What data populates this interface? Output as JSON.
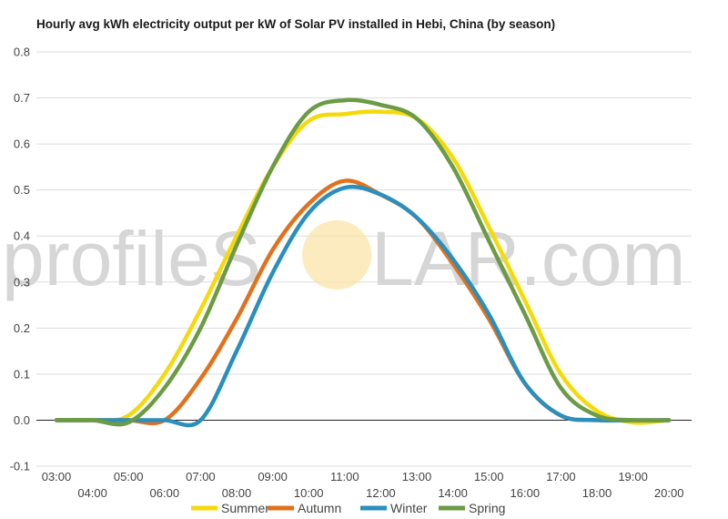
{
  "watermark": {
    "left": "profileS",
    "sun": "O",
    "right": "LAR.com"
  },
  "chart_data": {
    "type": "line",
    "title": "Hourly avg kWh electricity output per kW of Solar PV installed in Hebi, China (by season)",
    "xlabel": "",
    "ylabel": "",
    "ylim": [
      -0.1,
      0.8
    ],
    "yticks": [
      "-0.1",
      "0.0",
      "0.1",
      "0.2",
      "0.3",
      "0.4",
      "0.5",
      "0.6",
      "0.7",
      "0.8"
    ],
    "grid": true,
    "legend_position": "bottom",
    "x": [
      "03:00",
      "04:00",
      "05:00",
      "06:00",
      "07:00",
      "08:00",
      "09:00",
      "10:00",
      "11:00",
      "12:00",
      "13:00",
      "14:00",
      "15:00",
      "16:00",
      "17:00",
      "18:00",
      "19:00",
      "20:00"
    ],
    "series": [
      {
        "name": "Summer",
        "color": "#f5d90a",
        "values": [
          0,
          0,
          0.01,
          0.1,
          0.24,
          0.4,
          0.55,
          0.65,
          0.665,
          0.67,
          0.655,
          0.57,
          0.42,
          0.26,
          0.1,
          0.02,
          -0.005,
          0
        ]
      },
      {
        "name": "Autumn",
        "color": "#e2711d",
        "values": [
          0,
          0,
          0,
          0,
          0.09,
          0.22,
          0.37,
          0.47,
          0.52,
          0.49,
          0.44,
          0.34,
          0.22,
          0.08,
          0.01,
          0,
          0,
          0
        ]
      },
      {
        "name": "Winter",
        "color": "#2a8fbd",
        "values": [
          0,
          0,
          0,
          0,
          0,
          0.15,
          0.32,
          0.45,
          0.505,
          0.49,
          0.44,
          0.35,
          0.23,
          0.08,
          0.01,
          0,
          0,
          0
        ]
      },
      {
        "name": "Spring",
        "color": "#6b9b45",
        "values": [
          0,
          0,
          -0.005,
          0.07,
          0.2,
          0.38,
          0.55,
          0.67,
          0.695,
          0.685,
          0.655,
          0.55,
          0.39,
          0.23,
          0.07,
          0.01,
          0,
          0
        ]
      }
    ]
  }
}
